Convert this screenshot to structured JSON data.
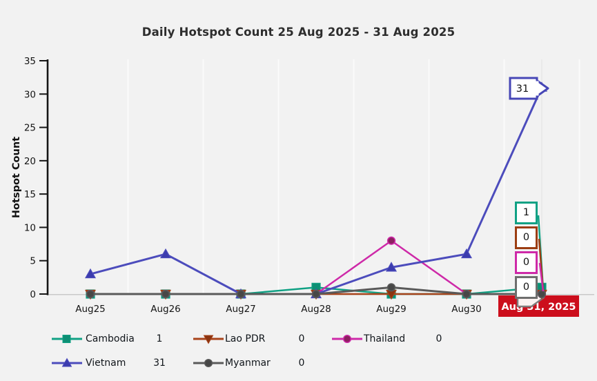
{
  "chart_data": {
    "type": "line",
    "title": "Daily Hotspot Count 25 Aug 2025 - 31 Aug 2025",
    "ylabel": "Hotspot Count",
    "ylim": [
      0,
      35
    ],
    "yticks": [
      0,
      5,
      10,
      15,
      20,
      25,
      30,
      35
    ],
    "categories": [
      "Aug25",
      "Aug26",
      "Aug27",
      "Aug28",
      "Aug29",
      "Aug30",
      "Aug31"
    ],
    "grid": "vertical",
    "legend_position": "bottom",
    "series": [
      {
        "name": "Cambodia",
        "values": [
          0,
          0,
          0,
          1,
          0,
          0,
          1
        ],
        "current": "1",
        "color": "#10a184",
        "marker_fill": "#0d8f74",
        "marker": "square"
      },
      {
        "name": "Lao PDR",
        "values": [
          0,
          0,
          0,
          0,
          0,
          0,
          0
        ],
        "current": "0",
        "color": "#a8431a",
        "marker_fill": "#8a3410",
        "marker": "triangle-down"
      },
      {
        "name": "Thailand",
        "values": [
          0,
          0,
          0,
          0,
          8,
          0,
          0
        ],
        "current": "0",
        "color": "#ce29a8",
        "marker_fill": "#8c2060",
        "marker": "circle"
      },
      {
        "name": "Vietnam",
        "values": [
          3,
          6,
          0,
          0,
          4,
          6,
          31
        ],
        "current": "31",
        "color": "#4c4cbc",
        "marker_fill": "#3c3cae",
        "marker": "triangle-up"
      },
      {
        "name": "Myanmar",
        "values": [
          0,
          0,
          0,
          0,
          1,
          0,
          0
        ],
        "current": "0",
        "color": "#595959",
        "marker_fill": "#474747",
        "marker": "circle"
      }
    ],
    "annotations": {
      "peak_callout": {
        "text": "31",
        "border_color": "#4646b6"
      },
      "value_callouts": [
        {
          "text": "1",
          "border_color": "#10a184"
        },
        {
          "text": "0",
          "border_color": "#9c3d12"
        },
        {
          "text": "0",
          "border_color": "#ce29a8"
        },
        {
          "text": "0",
          "border_color": "#6e6e6e"
        }
      ],
      "date_label": {
        "text": "Aug 31, 2025",
        "bg_color": "#cc0e1c",
        "text_color": "#ffffff"
      }
    }
  }
}
